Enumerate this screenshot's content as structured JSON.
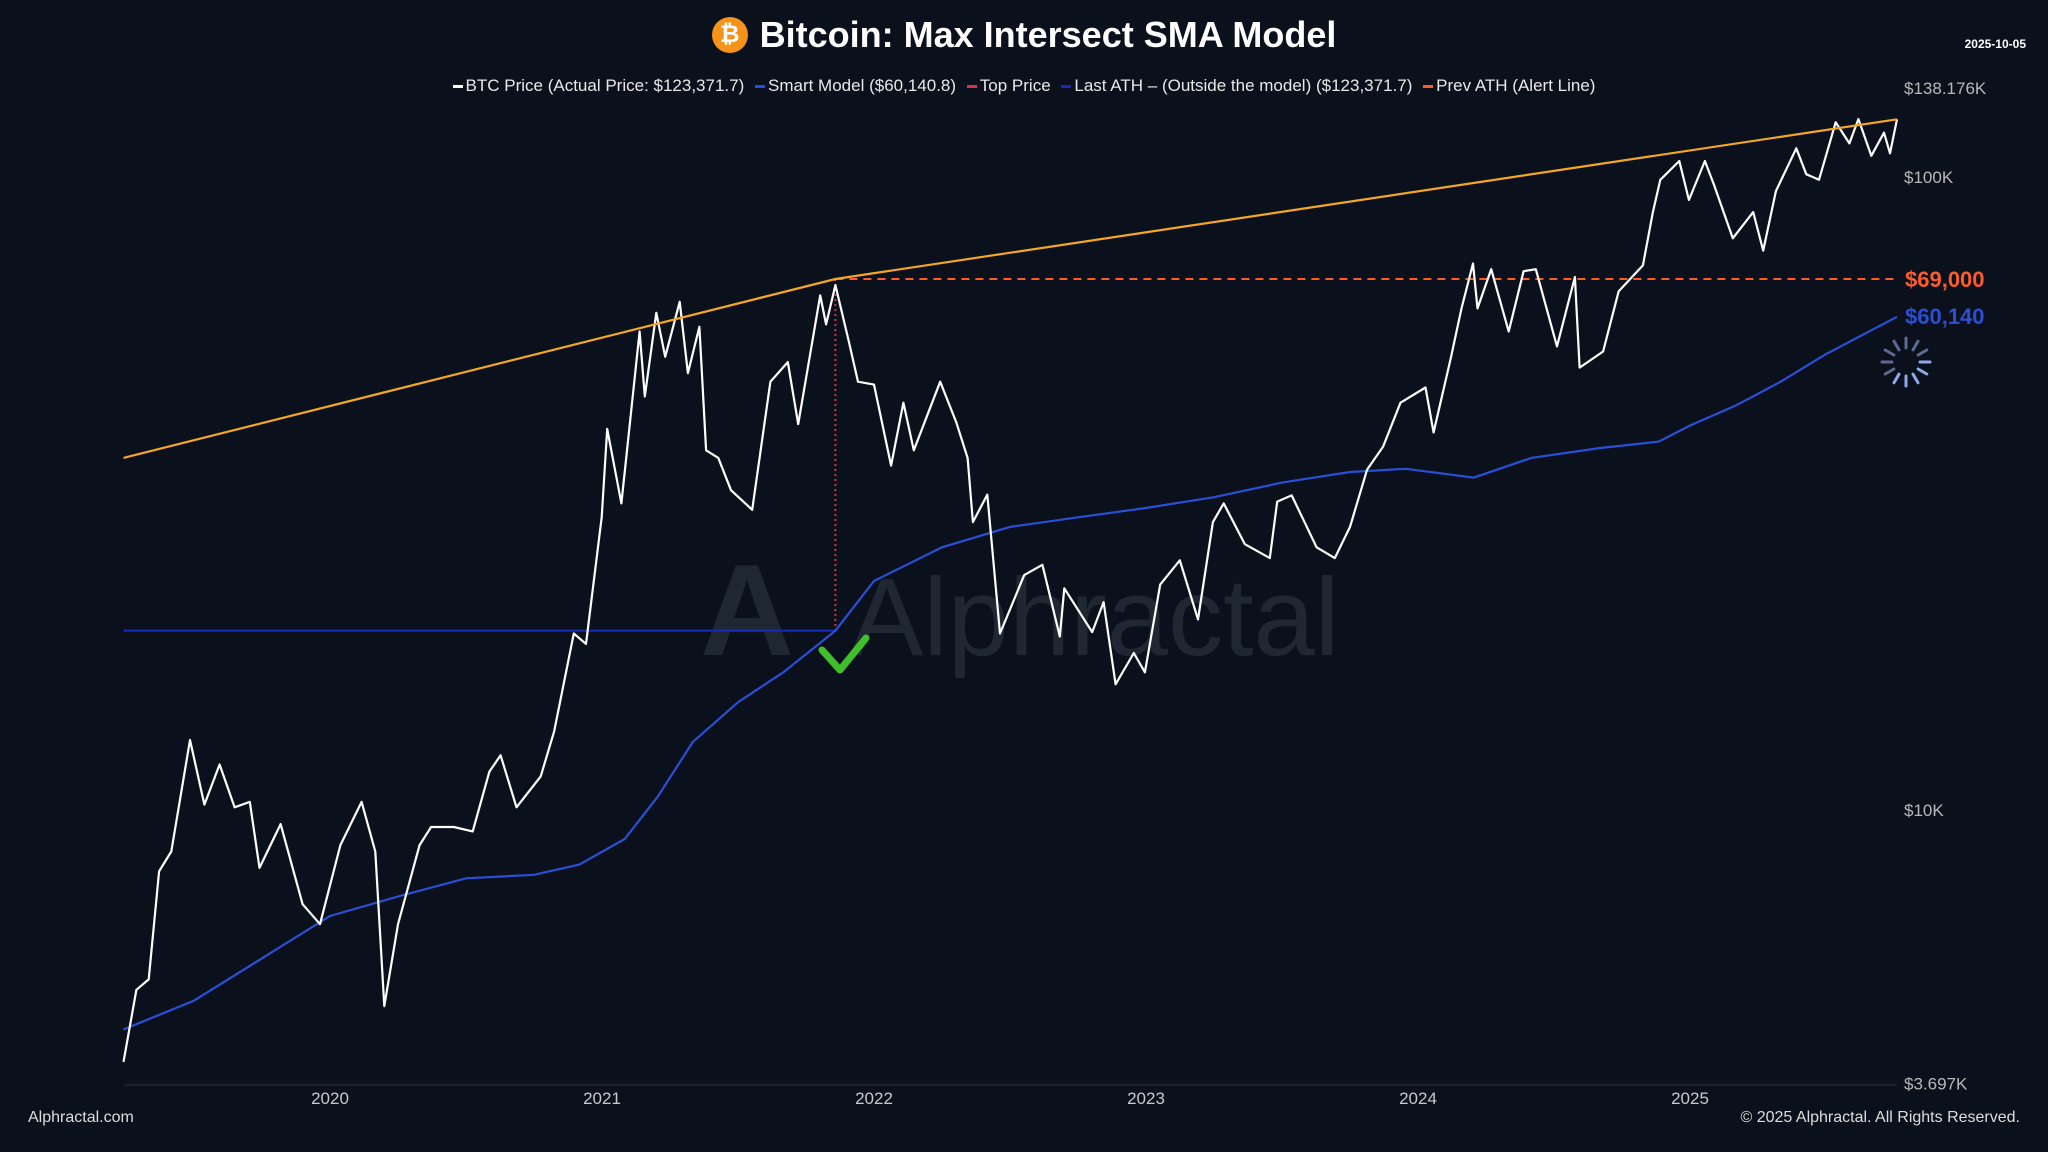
{
  "header": {
    "title": "Bitcoin: Max Intersect SMA Model",
    "date": "2025-10-05",
    "icon": "bitcoin-icon"
  },
  "legend": [
    {
      "label": "BTC Price (Actual Price: $123,371.7)",
      "color": "#ffffff"
    },
    {
      "label": "Smart Model ($60,140.8)",
      "color": "#2a4fd6"
    },
    {
      "label": "Top Price",
      "color": "#d8304a"
    },
    {
      "label": "Last ATH – (Outside the model) ($123,371.7)",
      "color": "#1a2ab8"
    },
    {
      "label": "Prev ATH (Alert Line)",
      "color": "#ff5a2a"
    }
  ],
  "footer": {
    "left": "Alphractal.com",
    "right": "© 2025 Alphractal. All Rights Reserved."
  },
  "watermark": "Alphractal",
  "chart_data": {
    "type": "line",
    "title": "Bitcoin: Max Intersect SMA Model",
    "y_scale": "log",
    "ylim": [
      3697,
      138176
    ],
    "y_ticks": [
      "$138.176K",
      "$100K",
      "$10K",
      "$3.697K"
    ],
    "y_tick_values": [
      138176,
      100000,
      10000,
      3697
    ],
    "x_ticks": [
      "2020",
      "2021",
      "2022",
      "2023",
      "2024",
      "2025"
    ],
    "grid": false,
    "annotations": {
      "prev_ath_label": "$69,000",
      "prev_ath_value": 69000,
      "prev_ath_color": "#ff5a2a",
      "model_label": "$60,140",
      "model_value": 60140,
      "model_color": "#2a4fd6",
      "last_ath_line_value": 19200,
      "last_ath_line_range": [
        "2019-03-28",
        "2021-11-10"
      ],
      "top_date": "2021-11-10"
    },
    "series": [
      {
        "name": "BTC Price",
        "color": "#ffffff",
        "points": [
          [
            "2019-03-28",
            4000
          ],
          [
            "2019-04-15",
            5200
          ],
          [
            "2019-05-01",
            5400
          ],
          [
            "2019-05-15",
            8000
          ],
          [
            "2019-06-01",
            8600
          ],
          [
            "2019-06-26",
            12900
          ],
          [
            "2019-07-15",
            10200
          ],
          [
            "2019-08-05",
            11800
          ],
          [
            "2019-08-25",
            10100
          ],
          [
            "2019-09-15",
            10300
          ],
          [
            "2019-09-28",
            8100
          ],
          [
            "2019-10-26",
            9500
          ],
          [
            "2019-11-25",
            7100
          ],
          [
            "2019-12-18",
            6600
          ],
          [
            "2020-01-15",
            8800
          ],
          [
            "2020-02-13",
            10300
          ],
          [
            "2020-03-01",
            8600
          ],
          [
            "2020-03-13",
            4900
          ],
          [
            "2020-04-01",
            6600
          ],
          [
            "2020-04-30",
            8800
          ],
          [
            "2020-05-15",
            9400
          ],
          [
            "2020-06-15",
            9400
          ],
          [
            "2020-07-10",
            9250
          ],
          [
            "2020-08-02",
            11500
          ],
          [
            "2020-08-17",
            12200
          ],
          [
            "2020-09-08",
            10100
          ],
          [
            "2020-10-10",
            11300
          ],
          [
            "2020-10-28",
            13300
          ],
          [
            "2020-11-24",
            19000
          ],
          [
            "2020-12-10",
            18300
          ],
          [
            "2020-12-31",
            29000
          ],
          [
            "2021-01-08",
            40000
          ],
          [
            "2021-01-27",
            30500
          ],
          [
            "2021-02-21",
            57000
          ],
          [
            "2021-02-28",
            45000
          ],
          [
            "2021-03-13",
            61000
          ],
          [
            "2021-03-25",
            52000
          ],
          [
            "2021-04-14",
            63500
          ],
          [
            "2021-04-25",
            49000
          ],
          [
            "2021-05-10",
            58000
          ],
          [
            "2021-05-19",
            37000
          ],
          [
            "2021-06-05",
            36000
          ],
          [
            "2021-06-22",
            32000
          ],
          [
            "2021-07-20",
            29800
          ],
          [
            "2021-08-14",
            47500
          ],
          [
            "2021-09-07",
            51000
          ],
          [
            "2021-09-21",
            40700
          ],
          [
            "2021-10-20",
            65000
          ],
          [
            "2021-10-28",
            58500
          ],
          [
            "2021-11-10",
            67500
          ],
          [
            "2021-11-28",
            55000
          ],
          [
            "2021-12-10",
            47500
          ],
          [
            "2022-01-01",
            47000
          ],
          [
            "2022-01-24",
            35000
          ],
          [
            "2022-02-10",
            44000
          ],
          [
            "2022-02-24",
            37000
          ],
          [
            "2022-03-29",
            47500
          ],
          [
            "2022-04-20",
            41000
          ],
          [
            "2022-05-05",
            36000
          ],
          [
            "2022-05-12",
            28500
          ],
          [
            "2022-06-01",
            31500
          ],
          [
            "2022-06-18",
            19000
          ],
          [
            "2022-07-20",
            23500
          ],
          [
            "2022-08-14",
            24400
          ],
          [
            "2022-09-07",
            18800
          ],
          [
            "2022-09-13",
            22400
          ],
          [
            "2022-10-20",
            19100
          ],
          [
            "2022-11-05",
            21300
          ],
          [
            "2022-11-21",
            15800
          ],
          [
            "2022-12-15",
            17700
          ],
          [
            "2022-12-30",
            16500
          ],
          [
            "2023-01-20",
            22700
          ],
          [
            "2023-02-16",
            24800
          ],
          [
            "2023-03-10",
            20000
          ],
          [
            "2023-03-30",
            28500
          ],
          [
            "2023-04-14",
            30500
          ],
          [
            "2023-05-12",
            26300
          ],
          [
            "2023-06-15",
            25000
          ],
          [
            "2023-06-25",
            30700
          ],
          [
            "2023-07-14",
            31400
          ],
          [
            "2023-08-17",
            26000
          ],
          [
            "2023-09-11",
            25000
          ],
          [
            "2023-10-01",
            28000
          ],
          [
            "2023-10-24",
            34500
          ],
          [
            "2023-11-15",
            37500
          ],
          [
            "2023-12-08",
            44000
          ],
          [
            "2024-01-11",
            46500
          ],
          [
            "2024-01-22",
            39500
          ],
          [
            "2024-02-15",
            52000
          ],
          [
            "2024-02-29",
            62000
          ],
          [
            "2024-03-14",
            73000
          ],
          [
            "2024-03-20",
            62000
          ],
          [
            "2024-04-08",
            71500
          ],
          [
            "2024-05-01",
            57000
          ],
          [
            "2024-05-21",
            71000
          ],
          [
            "2024-06-07",
            71500
          ],
          [
            "2024-07-05",
            54000
          ],
          [
            "2024-07-29",
            69500
          ],
          [
            "2024-08-05",
            50000
          ],
          [
            "2024-09-06",
            53000
          ],
          [
            "2024-09-27",
            66000
          ],
          [
            "2024-10-29",
            72500
          ],
          [
            "2024-11-12",
            88000
          ],
          [
            "2024-11-22",
            99000
          ],
          [
            "2024-12-17",
            106000
          ],
          [
            "2024-12-30",
            92000
          ],
          [
            "2025-01-21",
            106000
          ],
          [
            "2025-02-03",
            97000
          ],
          [
            "2025-02-28",
            80000
          ],
          [
            "2025-03-25",
            88000
          ],
          [
            "2025-04-08",
            76500
          ],
          [
            "2025-04-25",
            95000
          ],
          [
            "2025-05-22",
            111000
          ],
          [
            "2025-06-05",
            101000
          ],
          [
            "2025-06-22",
            99000
          ],
          [
            "2025-07-14",
            122000
          ],
          [
            "2025-08-02",
            113000
          ],
          [
            "2025-08-14",
            123500
          ],
          [
            "2025-09-01",
            108000
          ],
          [
            "2025-09-18",
            117500
          ],
          [
            "2025-09-26",
            109000
          ],
          [
            "2025-10-05",
            123371.7
          ]
        ]
      },
      {
        "name": "Smart Model",
        "color": "#2a4fd6",
        "points": [
          [
            "2019-03-28",
            4500
          ],
          [
            "2019-07-01",
            5000
          ],
          [
            "2020-01-01",
            6800
          ],
          [
            "2020-04-01",
            7300
          ],
          [
            "2020-07-01",
            7800
          ],
          [
            "2020-10-01",
            7900
          ],
          [
            "2020-12-01",
            8200
          ],
          [
            "2021-02-01",
            9000
          ],
          [
            "2021-03-15",
            10500
          ],
          [
            "2021-05-01",
            12800
          ],
          [
            "2021-07-01",
            14800
          ],
          [
            "2021-09-01",
            16500
          ],
          [
            "2021-11-10",
            19200
          ],
          [
            "2022-01-01",
            23000
          ],
          [
            "2022-04-01",
            26000
          ],
          [
            "2022-07-01",
            28000
          ],
          [
            "2022-10-01",
            29000
          ],
          [
            "2023-01-01",
            30000
          ],
          [
            "2023-04-01",
            31200
          ],
          [
            "2023-07-01",
            32900
          ],
          [
            "2023-10-01",
            34200
          ],
          [
            "2023-12-15",
            34600
          ],
          [
            "2024-03-15",
            33500
          ],
          [
            "2024-06-01",
            36000
          ],
          [
            "2024-09-01",
            37300
          ],
          [
            "2024-11-20",
            38200
          ],
          [
            "2025-01-01",
            40500
          ],
          [
            "2025-03-01",
            43500
          ],
          [
            "2025-05-01",
            47500
          ],
          [
            "2025-07-01",
            52500
          ],
          [
            "2025-10-05",
            60140.8
          ]
        ]
      },
      {
        "name": "Top Price",
        "color": "#f5a623",
        "points": [
          [
            "2019-03-28",
            36000
          ],
          [
            "2021-11-10",
            69000
          ],
          [
            "2025-10-05",
            123371.7
          ]
        ]
      },
      {
        "name": "Prev ATH (Alert Line)",
        "color": "#ff5a2a",
        "points": [
          [
            "2021-11-10",
            69000
          ],
          [
            "2025-10-05",
            69000
          ]
        ]
      }
    ]
  }
}
